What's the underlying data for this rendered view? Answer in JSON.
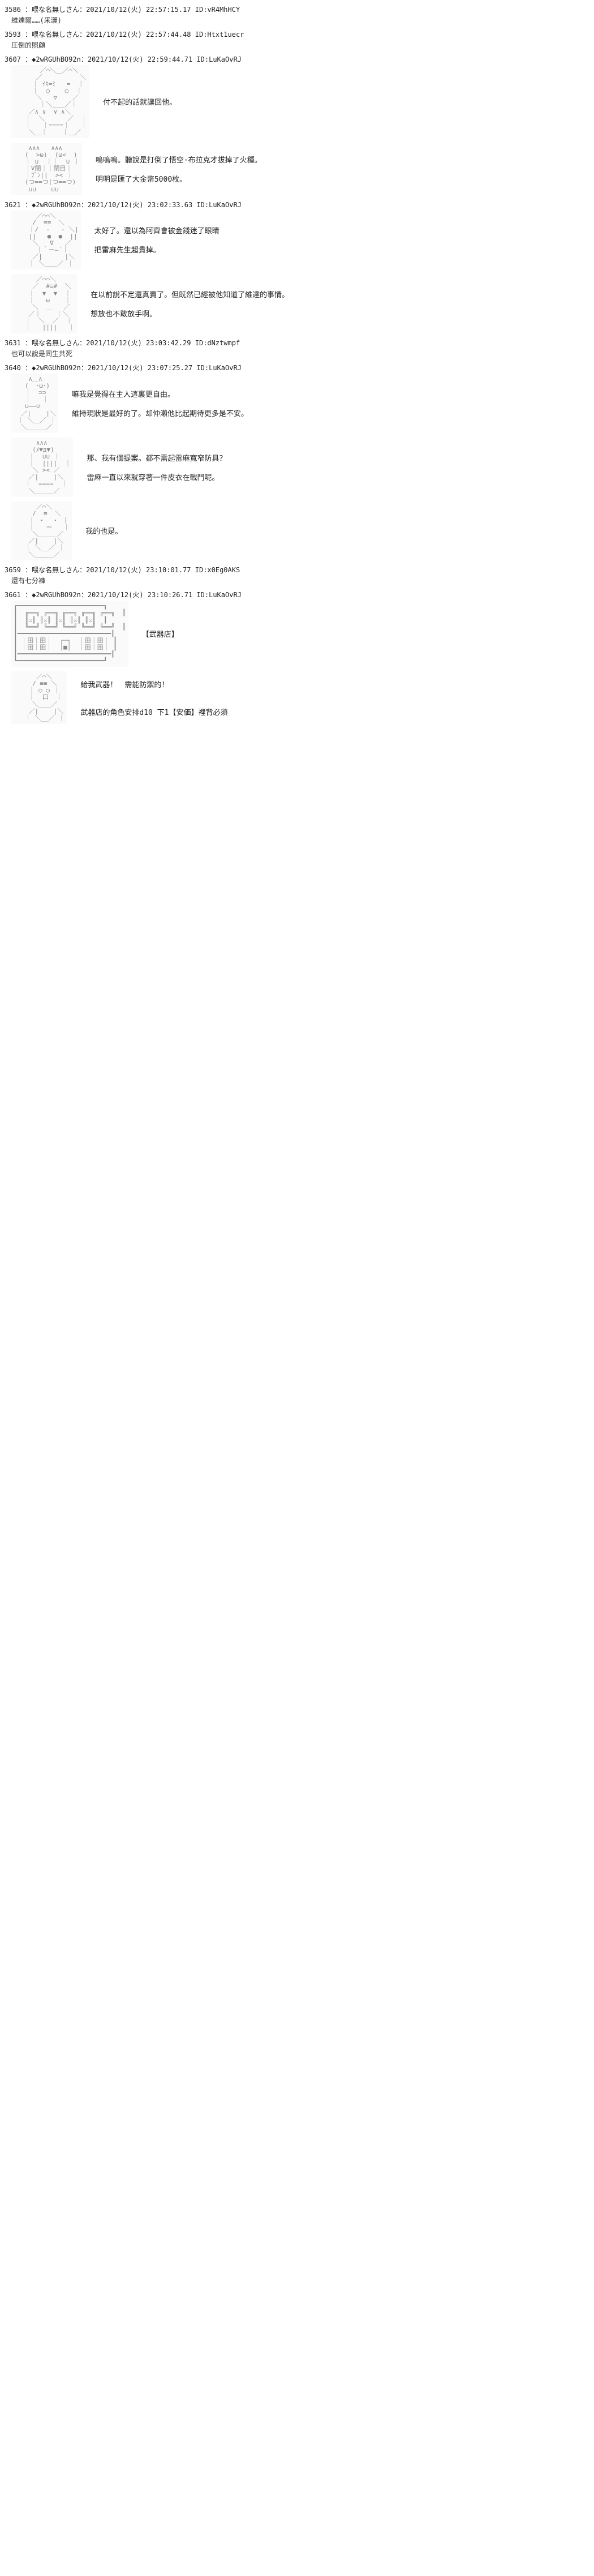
{
  "posts": [
    {
      "no": "3586",
      "meta": "：喂な名無しさん：2021/10/12(火) 22:57:15.17 ID:vR4MhHCY",
      "body": "維達爾……(釆灑)"
    },
    {
      "no": "3593",
      "meta": "：喂な名無しさん：2021/10/12(火) 22:57:44.48 ID:Htxt1uecr",
      "body": "圧倒的照顧"
    },
    {
      "no": "3607",
      "meta": "：◆2wRGUhBO92n：2021/10/12(火) 22:59:44.71 ID:LuKaOvRJ",
      "aa": "face1",
      "dialogue": "付不起的話就讓回他。"
    },
    {
      "no": "",
      "meta": "",
      "aa": "face2",
      "dialogue": "嗚嗚嗚。聽說是打倒了悟空·布拉克才拔掉了火種。\n\n明明是匯了大金幣5000枚。"
    },
    {
      "no": "3621",
      "meta": "：◆2wRGUhBO92n：2021/10/12(火) 23:02:33.63 ID:LuKaOvRJ",
      "aa": "face3",
      "dialogue": "太好了。還以為阿齊會被金錢迷了眼睛\n\n把雷麻先生超貴掉。"
    },
    {
      "no": "",
      "meta": "",
      "aa": "face4",
      "dialogue": "在以前說不定還真賣了。但既然已經被他知道了維達的事情。\n\n想放也不敢放手啊。"
    },
    {
      "no": "3631",
      "meta": "：喂な名無しさん：2021/10/12(火) 23:03:42.29 ID:dNztwmpf",
      "body": "也可以說是同生共死"
    },
    {
      "no": "3640",
      "meta": "：◆2wRGUhBO92n：2021/10/12(火) 23:07:25.27 ID:LuKaOvRJ",
      "aa": "face5",
      "dialogue": "嘛我是覺得在主人這裏更自由。\n\n維持現狀是最好的了。却仲瀨他比起期待更多是不安。"
    },
    {
      "no": "",
      "meta": "",
      "aa": "face6",
      "dialogue": "那、我有個提案。都不需起雷麻寬窄防具？\n\n雷麻一直以來就穿著一件皮衣在戰鬥呢。"
    },
    {
      "no": "",
      "meta": "",
      "aa": "face7",
      "dialogue": "我的也是。"
    },
    {
      "no": "3659",
      "meta": "：喂な名無しさん：2021/10/12(火) 23:10:01.77 ID:x0Eg0AKS",
      "body": "還有七分褲"
    },
    {
      "no": "3661",
      "meta": "：◆2wRGUhBO92n：2021/10/12(火) 23:10:26.71 ID:LuKaOvRJ",
      "aa": "shop",
      "dialogue": "【武器店】"
    },
    {
      "no": "",
      "meta": "",
      "aa": "face8",
      "dialogue": "給我武器！　需能防禦的！\n\n\n武器店的角色安排d10 下1【安価】裡背必須"
    }
  ],
  "aa": {
    "face1": "       ／⌒＼＿／⌒＼\n      ／          ＼\n     ｜ ｲｷ=ﾐ   =  ｜\n     ｜  ○    ○  ｜\n      ＼   ▽    ／\n       ｜＼＿＿／｜\n    ／∧ ∨  ∨ ∧＼\n   ｜  ＼      ／  ｜\n   ｜   ｜====｜   ｜\n    ＼＿｜    ｜＿／",
    "face2": "    ∧∧∧   ∧∧∧\n   (  >ω)  (ω<  )\n   ｜ ∪  ｜｜  ∪ ｜\n   ｜V閉｜｜閉目｜\n   ｜ﾌﾞﾝ||  >< ｜\n   (つ==つ(つ==つ)\n    ∪∪    ∪∪",
    "face3": "      ／⌒⌒＼\n     /  ≡≡  ＼\n    ｜/  -   - ＼|\n    ||   ●  ●  ||\n     ＼   ∇   ／\n      ｜｀ー―´｜\n     ／|      |＼\n    ｜ ＼＿＿／ ｜",
    "face4": "      ／⌒⌒＼\n     ／  #≡#  ＼\n    ｜  ▼  ▼  ｜\n    ｜   ω    ｜\n     ＼  ＿   ／\n    ／｜    ｜＼\n   ｜  ＼__／  ｜\n   ｜   ||||   ｜",
    "face5": "    ∧＿∧\n   (  ･ω･)\n   ｜  ⊃⊃\n   ｜   ｜\n   ∪――∪\n  ／|    |＼\n ｜ ＼＿／ ｜\n  ＼＿＿＿／",
    "face6": "      ∧∧∧\n     (ﾒ▼д▼)\n    ｜  ∪∪ ｜\n    ｜  ||||  ｜\n     ＼ >< ／\n    ／|    |＼\n   ｜  ====  ｜\n    ＼＿＿＿／",
    "face7": "      ／⌒＼\n     /  ≡  ＼\n    ｜ ・  ・ ｜\n    ｜   ー   ｜\n     ＼＿＿＿／\n    ／|    |＼\n   ｜ ＼__／ ｜\n    ＼＿＿＿／",
    "shop": "┏━━━━━━━━━━━━━━━━━━━━━━━┓\n┃  ╔══╗ ╔══╗ ╔══╗ ╔══╗ ╔══╗  ┃\n┃  ║⚔║ ║⚔║ ║⚔║ ║⚔║ ║⚔║  ┃\n┃  ╚══╝ ╚══╝ ╚══╝ ╚══╝ ╚══╝  ┃\n┃━━━━━━━━━━━━━━━━━━━━━━━━━┃\n┃ ｜田｜田｜  ┌─┐  ｜田｜田｜ ┃\n┃ ｜田｜田｜  │■│  ｜田｜田｜ ┃\n┃━━━━━━━━━━━━━━━━━━━━━━━━━┃\n┗━━━━━━━━━━━━━━━━━━━━━━━┛",
    "face8": "      ／⌒＼\n     / ≡≡ ＼\n    ｜ ○ ○ ｜\n    ｜  口  ｜\n     ＼＿＿／\n    ／|    |＼\n   ｜ ＼__／ ｜"
  }
}
